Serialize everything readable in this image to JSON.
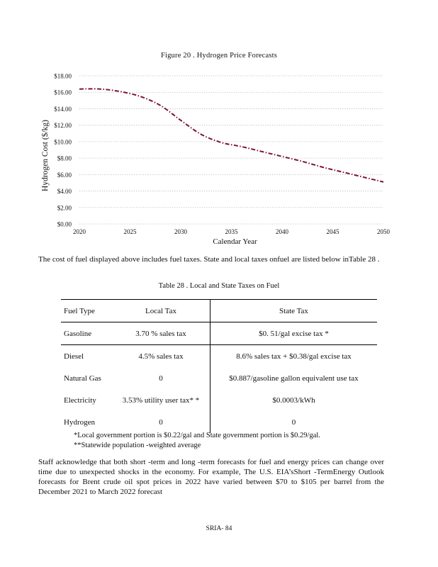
{
  "figure": {
    "title": "Figure 20 . Hydrogen Price Forecasts"
  },
  "chart_data": {
    "type": "line",
    "title": "Figure 20 . Hydrogen Price Forecasts",
    "xlabel": "Calendar Year",
    "ylabel": "Hydrogen Cost ($/kg)",
    "xlim": [
      2020,
      2050
    ],
    "ylim": [
      0,
      18
    ],
    "x_ticks": [
      "2020",
      "2025",
      "2030",
      "2035",
      "2040",
      "2045",
      "2050"
    ],
    "y_ticks": [
      "$0.00",
      "$2.00",
      "$4.00",
      "$6.00",
      "$8.00",
      "$10.00",
      "$12.00",
      "$14.00",
      "$16.00",
      "$18.00"
    ],
    "grid": "horizontal dotted",
    "series": [
      {
        "color": "#7a1530",
        "x": [
          2020,
          2022,
          2024,
          2026,
          2028,
          2030,
          2032,
          2034,
          2036,
          2038,
          2040,
          2042,
          2044,
          2046,
          2048,
          2050
        ],
        "y": [
          16.4,
          16.4,
          16.1,
          15.5,
          14.4,
          12.6,
          10.9,
          9.9,
          9.4,
          8.8,
          8.2,
          7.6,
          6.9,
          6.3,
          5.7,
          5.1
        ]
      }
    ]
  },
  "text": {
    "paragraph1": "The cost of fuel displayed above includes fuel taxes. State and local taxes onfuel are listed below inTable 28 .",
    "table_title": "Table 28 . Local and State Taxes on Fuel",
    "paragraph2": "Staff acknowledge that both short -term and long -term forecasts for fuel and energy prices can change over time due to unexpected shocks in the economy. For example, The U.S. EIA’sShort -TermEnergy Outlook forecasts for Brent crude oil spot prices in 2022 have varied between $70 to $105 per barrel from the December 2021 to March 2022 forecast",
    "page_number": "SRIA- 84"
  },
  "table": {
    "headers": [
      "Fuel Type",
      "Local Tax",
      "State Tax"
    ],
    "rows": [
      [
        "Gasoline",
        "3.70 % sales tax",
        "$0. 51/gal excise tax *"
      ],
      [
        "Diesel",
        "4.5% sales tax",
        "8.6% sales tax + $0.38/gal excise tax"
      ],
      [
        "Natural Gas",
        "0",
        "$0.887/gasoline gallon equivalent use tax"
      ],
      [
        "Electricity",
        "3.53% utility user tax* *",
        "$0.0003/kWh"
      ],
      [
        "Hydrogen",
        "0",
        "0"
      ]
    ],
    "footnotes": [
      "*Local government portion is $0.22/gal and State government portion is $0.29/gal.",
      "**Statewide population -weighted average"
    ]
  }
}
